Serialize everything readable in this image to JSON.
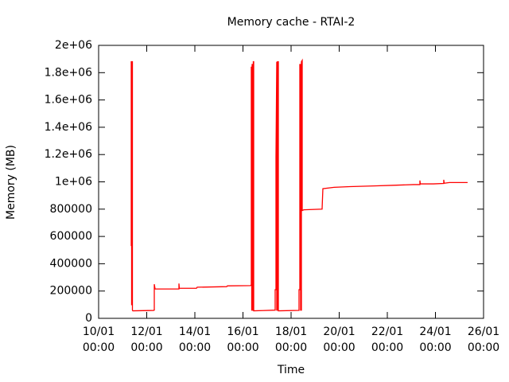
{
  "chart_data": {
    "type": "line",
    "title": "Memory cache - RTAI-2",
    "xlabel": "Time",
    "ylabel": "Memory (MB)",
    "color": "#ff0000",
    "x": [
      "11/01 08:32",
      "11/01 08:32",
      "11/01 08:55",
      "11/01 08:55",
      "11/01 09:19",
      "11/01 09:19",
      "11/01 09:43",
      "11/01 09:43",
      "11/01 10:07",
      "12/01 06:44",
      "12/01 07:32",
      "12/01 07:32",
      "12/01 08:20",
      "13/01 08:08",
      "13/01 08:08",
      "13/01 08:31",
      "14/01 01:35",
      "14/01 02:22",
      "15/01 07:44",
      "15/01 08:31",
      "16/01 07:32",
      "16/01 08:19",
      "16/01 08:19",
      "16/01 08:43",
      "16/01 08:43",
      "16/01 09:07",
      "16/01 09:07",
      "16/01 09:31",
      "16/01 09:31",
      "16/01 10:18",
      "16/01 10:18",
      "16/01 10:42",
      "16/01 10:42",
      "16/01 19:26",
      "17/01 08:07",
      "17/01 08:07",
      "17/01 08:55",
      "17/01 08:55",
      "17/01 09:42",
      "17/01 09:42",
      "17/01 10:30",
      "17/01 10:30",
      "17/01 11:18",
      "17/01 11:18",
      "18/01 07:55",
      "18/01 07:55",
      "18/01 08:43",
      "18/01 08:43",
      "18/01 09:30",
      "18/01 09:30",
      "18/01 10:18",
      "18/01 10:18",
      "18/01 11:06",
      "18/01 11:06",
      "18/01 12:41",
      "19/01 06:56",
      "19/01 07:43",
      "19/01 18:50",
      "20/01 10:42",
      "21/01 10:30",
      "22/01 06:20",
      "23/01 02:10",
      "23/01 08:31",
      "23/01 08:31",
      "23/01 08:54",
      "23/01 22:00",
      "24/01 08:18",
      "24/01 08:18",
      "24/01 08:42",
      "24/01 13:52",
      "25/01 08:06"
    ],
    "values": [
      530000,
      1880000,
      1880000,
      100000,
      100000,
      1880000,
      1880000,
      60000,
      55000,
      58000,
      60000,
      250000,
      215000,
      215000,
      255000,
      220000,
      220000,
      228000,
      232000,
      238000,
      240000,
      245000,
      1840000,
      1840000,
      60000,
      60000,
      1860000,
      1860000,
      60000,
      60000,
      1880000,
      1880000,
      55000,
      57000,
      60000,
      210000,
      210000,
      1180000,
      1880000,
      60000,
      60000,
      1880000,
      1880000,
      55000,
      58000,
      210000,
      210000,
      1860000,
      1860000,
      60000,
      60000,
      1880000,
      1890000,
      790000,
      795000,
      800000,
      950000,
      960000,
      965000,
      970000,
      975000,
      980000,
      980000,
      1010000,
      985000,
      985000,
      988000,
      1015000,
      990000,
      995000,
      995000
    ],
    "xlim": [
      "10/01 00:00",
      "26/01 00:00"
    ],
    "xticks": [
      "10/01\n00:00",
      "12/01\n00:00",
      "14/01\n00:00",
      "16/01\n00:00",
      "18/01\n00:00",
      "20/01\n00:00",
      "22/01\n00:00",
      "24/01\n00:00",
      "26/01\n00:00"
    ],
    "ylim": [
      0,
      2000000
    ],
    "yticks": [
      0,
      200000,
      400000,
      600000,
      800000,
      {
        "value": 1000000,
        "label": "1e+06"
      },
      {
        "value": 1200000,
        "label": "1.2e+06"
      },
      {
        "value": 1400000,
        "label": "1.4e+06"
      },
      {
        "value": 1600000,
        "label": "1.6e+06"
      },
      {
        "value": 1800000,
        "label": "1.8e+06"
      },
      {
        "value": 2000000,
        "label": "2e+06"
      }
    ]
  }
}
